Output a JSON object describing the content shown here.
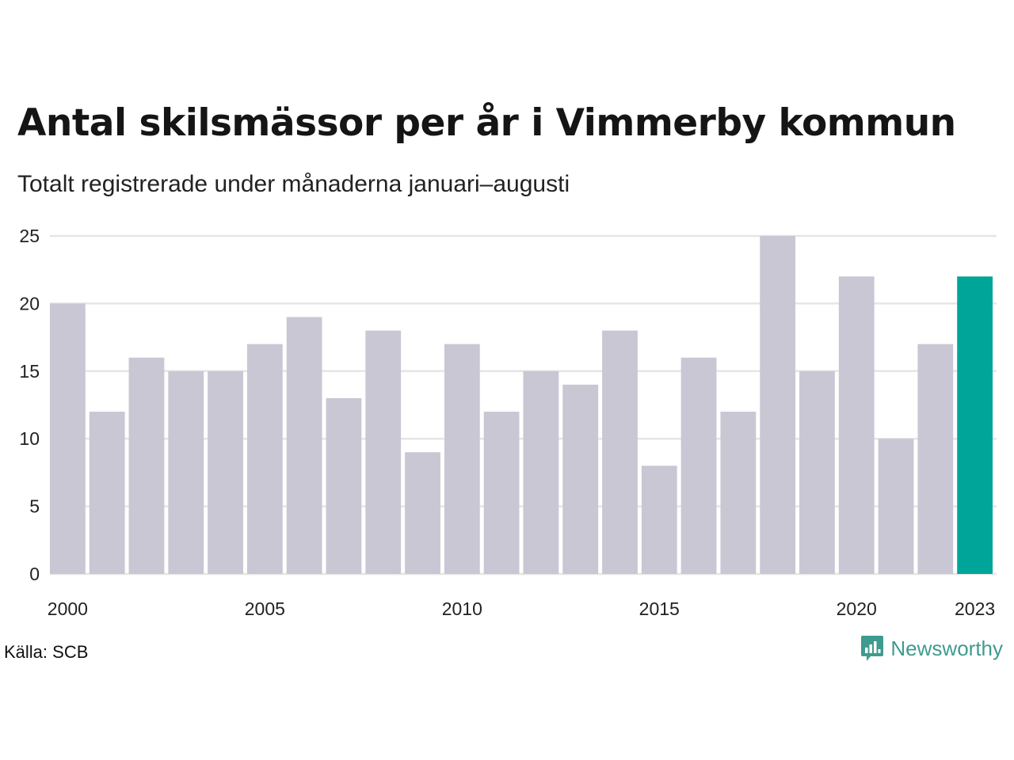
{
  "header": {
    "title": "Antal skilsmässor per år i Vimmerby kommun",
    "subtitle": "Totalt registrerade under månaderna januari–augusti"
  },
  "footer": {
    "source": "Källa: SCB",
    "brand": "Newsworthy",
    "brand_icon": "bar-chart-speech-bubble-icon"
  },
  "colors": {
    "bar": "#c8c7d3",
    "highlight": "#00a59a",
    "grid": "#e6e6e6",
    "brand": "#3f9b8e"
  },
  "chart_data": {
    "type": "bar",
    "title": "Antal skilsmässor per år i Vimmerby kommun",
    "subtitle": "Totalt registrerade under månaderna januari–augusti",
    "xlabel": "",
    "ylabel": "",
    "categories": [
      "2000",
      "2001",
      "2002",
      "2003",
      "2004",
      "2005",
      "2006",
      "2007",
      "2008",
      "2009",
      "2010",
      "2011",
      "2012",
      "2013",
      "2014",
      "2015",
      "2016",
      "2017",
      "2018",
      "2019",
      "2020",
      "2021",
      "2022",
      "2023"
    ],
    "values": [
      20,
      12,
      16,
      15,
      15,
      17,
      19,
      13,
      18,
      9,
      17,
      12,
      15,
      14,
      18,
      8,
      16,
      12,
      25,
      15,
      22,
      10,
      17,
      22
    ],
    "highlight": "2023",
    "ylim": [
      0,
      25
    ],
    "yticks": [
      "0",
      "5",
      "10",
      "15",
      "20",
      "25"
    ],
    "xtick_labels": [
      "2000",
      "2005",
      "2010",
      "2015",
      "2020",
      "2023"
    ],
    "grid": true,
    "legend": "none"
  }
}
